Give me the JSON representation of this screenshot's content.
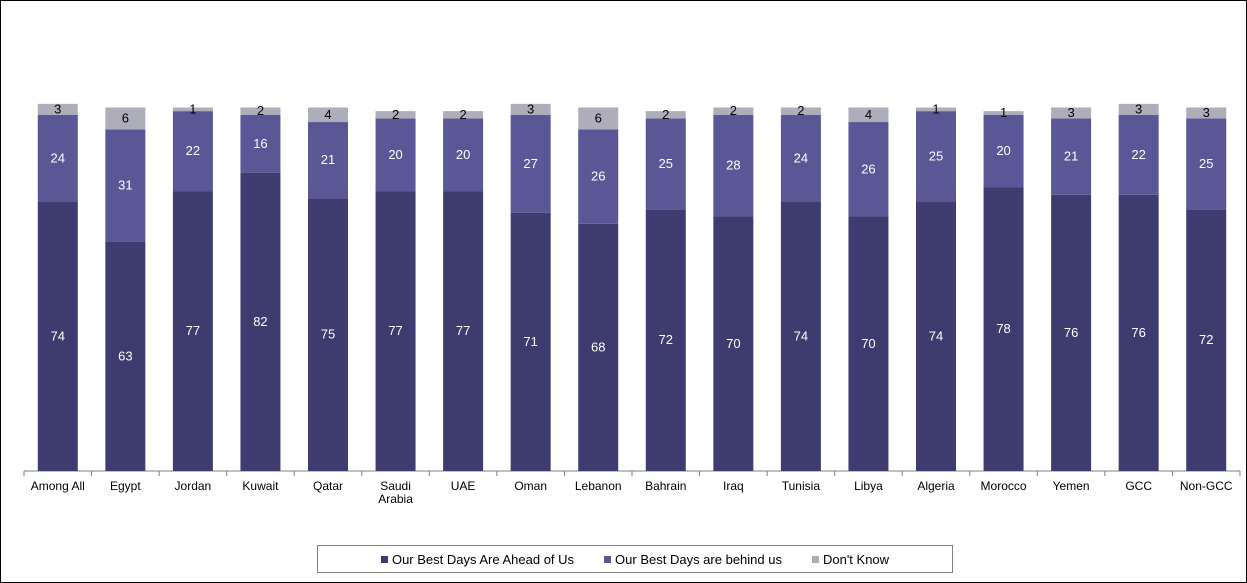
{
  "chart_data": {
    "type": "bar",
    "stacked": true,
    "title": "",
    "xlabel": "",
    "ylabel": "",
    "ylim": [
      0,
      100
    ],
    "grid": false,
    "legend_position": "bottom",
    "categories": [
      "Among All",
      "Egypt",
      "Jordan",
      "Kuwait",
      "Qatar",
      "Saudi Arabia",
      "UAE",
      "Oman",
      "Lebanon",
      "Bahrain",
      "Iraq",
      "Tunisia",
      "Libya",
      "Algeria",
      "Morocco",
      "Yemen",
      "GCC",
      "Non-GCC"
    ],
    "series": [
      {
        "name": "Our Best Days Are Ahead of Us",
        "color": "#3e3c6e",
        "label_color": "#ffffff",
        "values": [
          74,
          63,
          77,
          82,
          75,
          77,
          77,
          71,
          68,
          72,
          70,
          74,
          70,
          74,
          78,
          76,
          76,
          72
        ]
      },
      {
        "name": "Our Best Days are behind us",
        "color": "#5a5797",
        "label_color": "#ffffff",
        "values": [
          24,
          31,
          22,
          16,
          21,
          20,
          20,
          27,
          26,
          25,
          28,
          24,
          26,
          25,
          20,
          21,
          22,
          25
        ]
      },
      {
        "name": "Don't Know",
        "color": "#aeadba",
        "label_color": "#000000",
        "values": [
          3,
          6,
          1,
          2,
          4,
          2,
          2,
          3,
          6,
          2,
          2,
          2,
          4,
          1,
          1,
          3,
          3,
          3
        ]
      }
    ]
  }
}
